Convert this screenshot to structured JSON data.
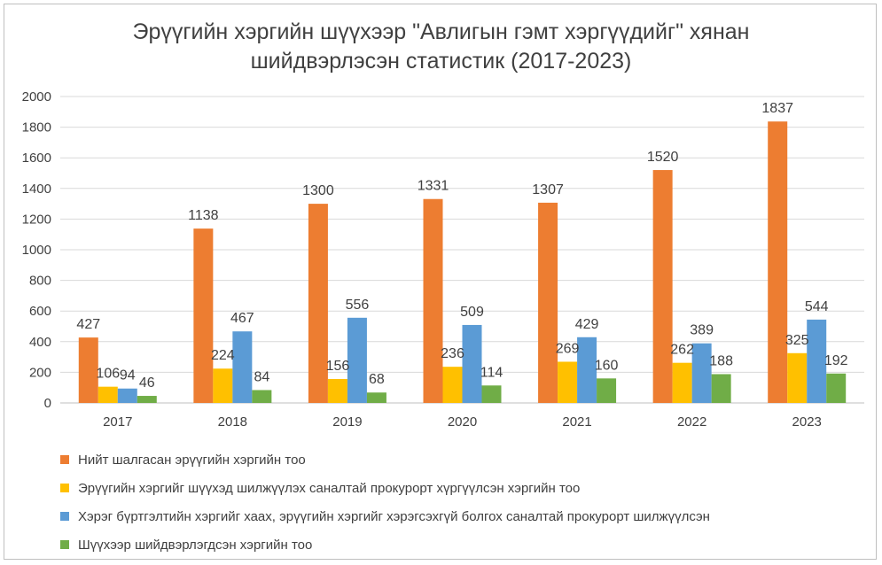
{
  "chart_data": {
    "type": "bar",
    "title_lines": [
      "Эрүүгийн хэргийн шүүхээр \"Авлигын гэмт хэргүүдийг\" хянан",
      "шийдвэрлэсэн статистик  (2017-2023)"
    ],
    "categories": [
      "2017",
      "2018",
      "2019",
      "2020",
      "2021",
      "2022",
      "2023"
    ],
    "ylim": [
      0,
      2000
    ],
    "yticks": [
      "0",
      "200",
      "400",
      "600",
      "800",
      "1000",
      "1200",
      "1400",
      "1600",
      "1800",
      "2000"
    ],
    "grid": true,
    "legend_position": "bottom",
    "series": [
      {
        "name": "Нийт шалгасан эрүүгийн хэргийн тоо",
        "color": "#ED7D31",
        "values": [
          427,
          1138,
          1300,
          1331,
          1307,
          1520,
          1837
        ]
      },
      {
        "name": "Эрүүгийн хэргийг шүүхэд шилжүүлэх саналтай прокурорт хүргүүлсэн хэргийн тоо",
        "color": "#FFC000",
        "values": [
          106,
          224,
          156,
          236,
          269,
          262,
          325
        ]
      },
      {
        "name": "Хэрэг бүртгэлтийн хэргийг хаах, эрүүгийн хэргийг хэрэгсэхгүй болгох саналтай прокурорт шилжүүлсэн",
        "color": "#5B9BD5",
        "values": [
          94,
          467,
          556,
          509,
          429,
          389,
          544
        ]
      },
      {
        "name": "Шүүхээр шийдвэрлэгдсэн хэргийн тоо",
        "color": "#70AD47",
        "values": [
          46,
          84,
          68,
          114,
          160,
          188,
          192
        ]
      }
    ]
  }
}
